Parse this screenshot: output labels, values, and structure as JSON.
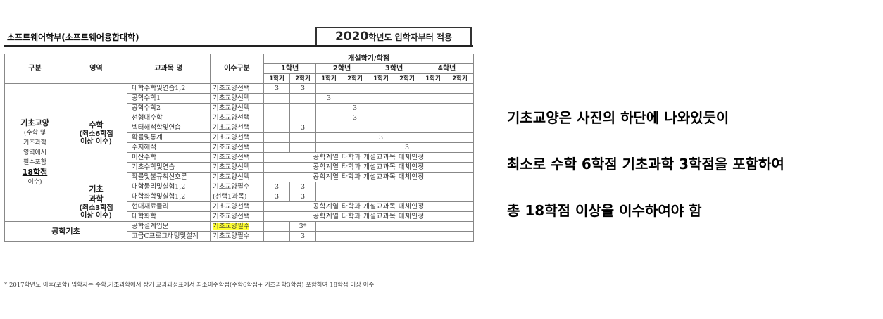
{
  "header": {
    "department": "소프트웨어학부(소프트웨어융합대학)",
    "year": "2020",
    "year_suffix": "학년도 입학자부터 적용"
  },
  "table_head": {
    "category": "구분",
    "area": "영역",
    "course": "교과목 명",
    "type": "이수구분",
    "offered": "개설학기/학점",
    "years": [
      "1학년",
      "2학년",
      "3학년",
      "4학년"
    ],
    "semesters": [
      "1학기",
      "2학기",
      "1학기",
      "2학기",
      "1학기",
      "2학기",
      "1학기",
      "2학기"
    ]
  },
  "groups": {
    "basic": {
      "title": "기초교양",
      "sub1": "(수학 및",
      "sub2": "기초과학",
      "sub3": "영역에서",
      "sub4": "필수포함",
      "emph": "18학점",
      "sub5": "이수)"
    },
    "math": {
      "title": "수학",
      "sub1": "(최소6학점",
      "sub2": "이상 이수)"
    },
    "science": {
      "title1": "기초",
      "title2": "과학",
      "sub1": "(최소3학점",
      "sub2": "이상 이수)"
    },
    "engineering": {
      "title": "공학기초"
    }
  },
  "rows": [
    {
      "course": "대학수학및연습1,2",
      "type": "기초교양선택",
      "c": [
        "3",
        "3",
        "",
        "",
        "",
        "",
        "",
        ""
      ]
    },
    {
      "course": "공학수학1",
      "type": "기초교양선택",
      "c": [
        "",
        "",
        "3",
        "",
        "",
        "",
        "",
        ""
      ]
    },
    {
      "course": "공학수학2",
      "type": "기초교양선택",
      "c": [
        "",
        "",
        "",
        "3",
        "",
        "",
        "",
        ""
      ]
    },
    {
      "course": "선형대수학",
      "type": "기초교양선택",
      "c": [
        "",
        "",
        "",
        "3",
        "",
        "",
        "",
        ""
      ]
    },
    {
      "course": "벡터해석학및연습",
      "type": "기초교양선택",
      "c": [
        "",
        "3",
        "",
        "",
        "",
        "",
        "",
        ""
      ]
    },
    {
      "course": "확률및통계",
      "type": "기초교양선택",
      "c": [
        "",
        "",
        "",
        "",
        "3",
        "",
        "",
        ""
      ]
    },
    {
      "course": "수치해석",
      "type": "기초교양선택",
      "c": [
        "",
        "",
        "",
        "",
        "",
        "3",
        "",
        ""
      ]
    },
    {
      "course": "이산수학",
      "type": "기초교양선택",
      "note": "공학계열 타학과 개설교과목 대체인정"
    },
    {
      "course": "기초수학및연습",
      "type": "기초교양선택",
      "note": "공학계열 타학과 개설교과목 대체인정"
    },
    {
      "course": "확률및불규칙신호론",
      "type": "기초교양선택",
      "note": "공학계열 타학과 개설교과목 대체인정"
    },
    {
      "course": "대학물리및실험1,2",
      "type": "기초교양필수",
      "c": [
        "3",
        "3",
        "",
        "",
        "",
        "",
        "",
        ""
      ]
    },
    {
      "course": "대학화학및실험1,2",
      "type": "(선택1과목)",
      "c": [
        "3",
        "3",
        "",
        "",
        "",
        "",
        "",
        ""
      ]
    },
    {
      "course": "현대재료물리",
      "type": "기초교양선택",
      "note": "공학계열 타학과 개설교과목 대체인정"
    },
    {
      "course": "대학화학",
      "type": "기초교양선택",
      "note": "공학계열 타학과 개설교과목 대체인정"
    },
    {
      "course": "공학설계입문",
      "type": "기초교양필수",
      "c": [
        "",
        "3*",
        "",
        "",
        "",
        "",
        "",
        ""
      ]
    },
    {
      "course": "고급C프로그래밍및설계",
      "type": "기초교양필수",
      "c": [
        "",
        "3",
        "",
        "",
        "",
        "",
        "",
        ""
      ]
    }
  ],
  "footnote": "* 2017학년도 이후(포함) 입학자는 수학,기초과학에서 상기 교과과정표에서 최소이수학점(수학6학점+ 기초과학3학점) 포함하여 18학점 이상 이수",
  "message": {
    "line1": "기초교양은 사진의 하단에 나와있듯이",
    "line2": "최소로 수학 6학점 기초과학 3학점을 포함하여",
    "line3": "총 18학점 이상을 이수하여야 함"
  },
  "colors": {
    "highlight": "#ffff33"
  }
}
